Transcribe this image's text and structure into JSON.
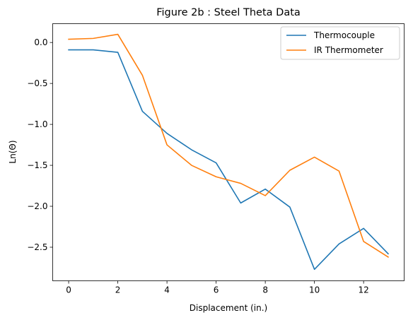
{
  "chart_data": {
    "type": "line",
    "title": "Figure 2b : Steel Theta Data",
    "xlabel": "Displacement (in.)",
    "ylabel": "Ln(Θ)",
    "xlim": [
      -0.65,
      13.65
    ],
    "ylim": [
      -2.91,
      0.23
    ],
    "xticks": [
      0,
      2,
      4,
      6,
      8,
      10,
      12
    ],
    "yticks": [
      0.0,
      -0.5,
      -1.0,
      -1.5,
      -2.0,
      -2.5
    ],
    "ytick_labels": [
      "0.0",
      "−0.5",
      "−1.0",
      "−1.5",
      "−2.0",
      "−2.5"
    ],
    "grid": false,
    "legend_position": "top-right",
    "x": [
      0,
      1,
      2,
      3,
      4,
      5,
      6,
      7,
      8,
      9,
      10,
      11,
      12,
      13
    ],
    "series": [
      {
        "name": "Thermocouple",
        "color": "#1f77b4",
        "values": [
          -0.09,
          -0.09,
          -0.12,
          -0.84,
          -1.11,
          -1.31,
          -1.47,
          -1.96,
          -1.79,
          -2.01,
          -2.77,
          -2.46,
          -2.27,
          -2.58
        ]
      },
      {
        "name": "IR Thermometer",
        "color": "#ff7f0e",
        "values": [
          0.04,
          0.05,
          0.1,
          -0.4,
          -1.25,
          -1.5,
          -1.64,
          -1.72,
          -1.87,
          -1.56,
          -1.4,
          -1.57,
          -2.43,
          -2.62
        ]
      }
    ]
  }
}
